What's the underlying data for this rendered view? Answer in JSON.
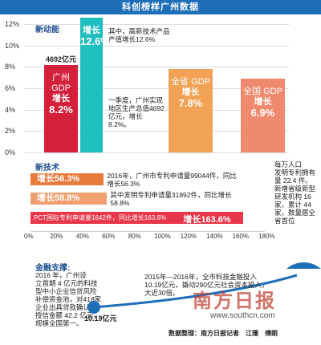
{
  "banner": "科创榜样广州数据",
  "section1": {
    "title": "新动能"
  },
  "chart_data": [
    {
      "type": "bar",
      "title": "新动能",
      "ylim": [
        0,
        12
      ],
      "yticks": [
        "12%",
        "10%",
        "8%",
        "6%",
        "4%",
        "2%",
        "0%"
      ],
      "bars": [
        {
          "label": "广州 GDP",
          "growth_label": "增长",
          "value": 8.2,
          "value_text": "8.2%",
          "amount": "4692亿元",
          "color": "#d4203a"
        },
        {
          "label": "",
          "growth_label": "增长",
          "value": 12.6,
          "value_text": "12.6%",
          "color": "#1fbfbf"
        },
        {
          "label": "全省 GDP",
          "growth_label": "增长",
          "value": 7.8,
          "value_text": "7.8%",
          "color": "#f2a255"
        },
        {
          "label": "全国 GDP",
          "growth_label": "增长",
          "value": 6.9,
          "value_text": "6.9%",
          "color": "#f08a6e"
        }
      ],
      "annotations": [
        "其中，高新技术产品产值增长12.6%",
        "一季度，广州实现地区生产总值4692亿元，增长8.2%。"
      ]
    },
    {
      "type": "bar",
      "orientation": "horizontal",
      "title": "新技术",
      "xlim": [
        0,
        180
      ],
      "xticks": [
        "0%",
        "20%",
        "40%",
        "60%",
        "80%",
        "100%",
        "120%",
        "140%",
        "160%",
        "180%"
      ],
      "bars": [
        {
          "label": "增长56.3%",
          "value": 56.3,
          "color": "#e87a3c",
          "text": "2016年，广州市专利申请量99044件，同比增长56.3%"
        },
        {
          "label": "增长58.8%",
          "value": 58.8,
          "color": "#f0a070",
          "text": "其中发明专利申请量31892件，同比增长58.8%"
        },
        {
          "label": "增长163.6%",
          "value": 163.6,
          "color": "#e8364a",
          "text": "PCT国际专利申请量1642件，同比增长163.6%"
        }
      ],
      "side_note": [
        "每万人口",
        "发明专利拥有",
        "量 22.4 件。",
        "新增省级新型",
        "研发机构 16",
        "家，累计 44",
        "家，数量居全",
        "省首位"
      ]
    }
  ],
  "section3": {
    "title": "金融支撑:",
    "text_lines": [
      "2016 年，广州设",
      "立首期 4 亿元的科技",
      "型中小企业信贷风险",
      "补偿资金池，对418家",
      "企业出具贷款确认书，",
      "授信金额 42.2 亿元，",
      "规模全国第一。"
    ],
    "amount_start": "10.19亿元",
    "growth_lines": [
      "2015年—2016年，全市科技金融投入",
      "10.19亿元，撬动290亿元社会资本投入，",
      "大近30倍。"
    ]
  },
  "watermark": {
    "logo": "南方日报",
    "url": "www.southcn.com"
  },
  "footer": "数据整理：南方日报记者　江珊　傅朗"
}
